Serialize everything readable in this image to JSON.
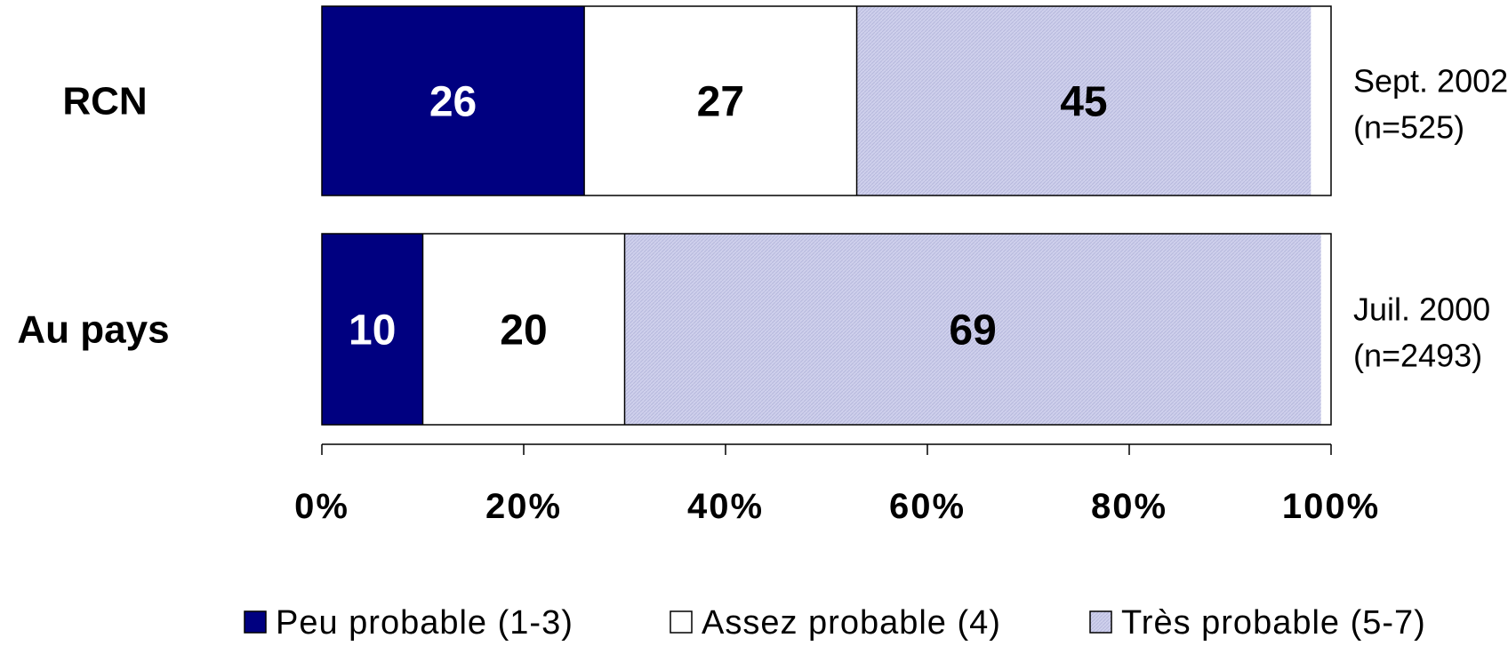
{
  "chart_data": {
    "type": "bar",
    "orientation": "horizontal",
    "stacked": true,
    "categories": [
      "RCN",
      "Au pays"
    ],
    "category_notes": [
      [
        "Sept. 2002",
        "(n=525)"
      ],
      [
        "Juil. 2000",
        "(n=2493)"
      ]
    ],
    "series": [
      {
        "name": "Peu probable (1-3)",
        "values": [
          26,
          10
        ],
        "color": "#000080",
        "label_color": "#ffffff"
      },
      {
        "name": "Assez probable (4)",
        "values": [
          27,
          20
        ],
        "color": "#ffffff",
        "label_color": "#000000"
      },
      {
        "name": "Très probable (5-7)",
        "values": [
          45,
          69
        ],
        "color": "#cfd0ec",
        "label_color": "#000000"
      }
    ],
    "xlim": [
      0,
      100
    ],
    "xticks": [
      "0%",
      "20%",
      "40%",
      "60%",
      "80%",
      "100%"
    ],
    "xlabel": "",
    "ylabel": "",
    "grid": false,
    "legend_position": "bottom"
  }
}
